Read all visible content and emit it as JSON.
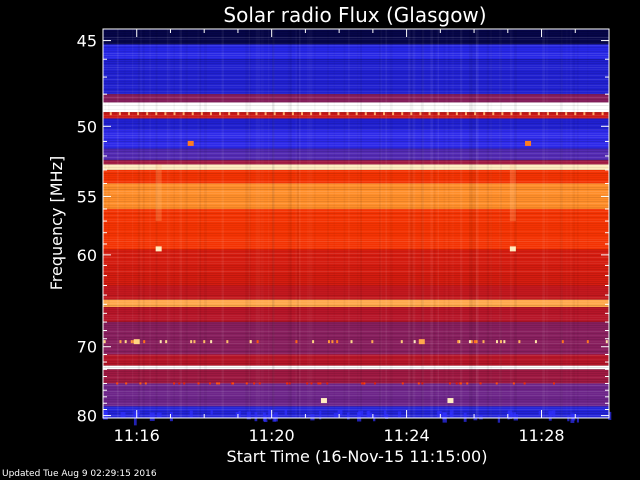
{
  "chart_data": {
    "type": "heatmap",
    "title": "Solar radio Flux (Glasgow)",
    "xlabel": "Start Time (16-Nov-15 11:15:00)",
    "ylabel": "Frequency [MHz]",
    "x_ticks": [
      "11:16",
      "11:20",
      "11:24",
      "11:28"
    ],
    "x_tick_minutes": [
      1,
      5,
      9,
      13
    ],
    "x_range_minutes": [
      0,
      15
    ],
    "y_ticks": [
      45,
      50,
      55,
      60,
      70,
      80
    ],
    "y_range_mhz": [
      44.4,
      80.4
    ],
    "y_scale": "reciprocal",
    "grid": false,
    "legend": "none",
    "background_color": "#000000",
    "colormap": [
      "#000010",
      "#0a0a78",
      "#1e1ec8",
      "#2a2af0",
      "#5a2aa8",
      "#8a1e5a",
      "#b4142a",
      "#dc1e0a",
      "#ff3c00",
      "#ff8c28",
      "#ffdc8c",
      "#ffffff"
    ],
    "bands": [
      {
        "f_start": 44.4,
        "f_end": 45.2,
        "intensity": 0.05
      },
      {
        "f_start": 45.2,
        "f_end": 46.0,
        "intensity": 0.25
      },
      {
        "f_start": 46.0,
        "f_end": 48.0,
        "intensity": 0.2
      },
      {
        "f_start": 48.0,
        "f_end": 48.5,
        "intensity": 0.45
      },
      {
        "f_start": 48.5,
        "f_end": 49.1,
        "intensity": 1.0
      },
      {
        "f_start": 49.1,
        "f_end": 49.5,
        "intensity": 0.6
      },
      {
        "f_start": 49.5,
        "f_end": 50.2,
        "intensity": 0.2
      },
      {
        "f_start": 50.2,
        "f_end": 51.5,
        "intensity": 0.28
      },
      {
        "f_start": 51.5,
        "f_end": 52.3,
        "intensity": 0.35
      },
      {
        "f_start": 52.3,
        "f_end": 52.6,
        "intensity": 0.5
      },
      {
        "f_start": 52.6,
        "f_end": 53.0,
        "intensity": 0.95
      },
      {
        "f_start": 53.0,
        "f_end": 54.0,
        "intensity": 0.7
      },
      {
        "f_start": 54.0,
        "f_end": 56.0,
        "intensity": 0.82
      },
      {
        "f_start": 56.0,
        "f_end": 59.5,
        "intensity": 0.7
      },
      {
        "f_start": 59.5,
        "f_end": 63.0,
        "intensity": 0.62
      },
      {
        "f_start": 63.0,
        "f_end": 64.5,
        "intensity": 0.58
      },
      {
        "f_start": 64.5,
        "f_end": 65.3,
        "intensity": 0.85
      },
      {
        "f_start": 65.3,
        "f_end": 67.0,
        "intensity": 0.55
      },
      {
        "f_start": 67.0,
        "f_end": 71.0,
        "intensity": 0.45
      },
      {
        "f_start": 71.0,
        "f_end": 72.5,
        "intensity": 0.55
      },
      {
        "f_start": 72.5,
        "f_end": 73.0,
        "intensity": 1.0
      },
      {
        "f_start": 73.0,
        "f_end": 75.0,
        "intensity": 0.5
      },
      {
        "f_start": 75.0,
        "f_end": 78.5,
        "intensity": 0.4
      },
      {
        "f_start": 78.5,
        "f_end": 80.4,
        "intensity": 0.22
      }
    ],
    "bursts": [
      {
        "minute": 1.65,
        "f_mhz": 59.4,
        "intensity": 0.95
      },
      {
        "minute": 12.15,
        "f_mhz": 59.4,
        "intensity": 0.95
      },
      {
        "minute": 2.6,
        "f_mhz": 51.1,
        "intensity": 0.8
      },
      {
        "minute": 12.6,
        "f_mhz": 51.1,
        "intensity": 0.8
      },
      {
        "minute": 6.55,
        "f_mhz": 77.5,
        "intensity": 0.95
      },
      {
        "minute": 10.3,
        "f_mhz": 77.5,
        "intensity": 0.95
      },
      {
        "minute": 1.0,
        "f_mhz": 69.3,
        "intensity": 0.9
      },
      {
        "minute": 9.45,
        "f_mhz": 69.3,
        "intensity": 0.85
      }
    ]
  },
  "footer": {
    "updated_text": "Updated Tue Aug  9 02:29:15 2016"
  }
}
